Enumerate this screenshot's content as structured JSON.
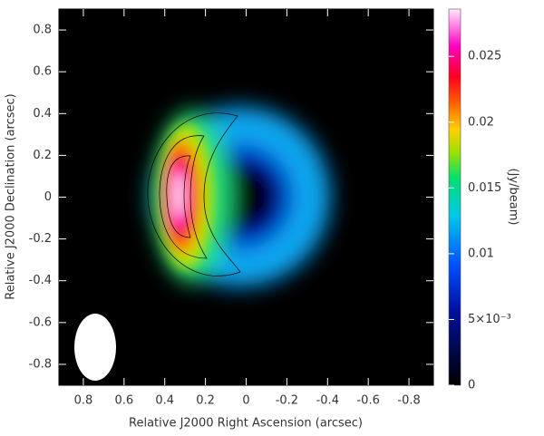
{
  "chart_data": {
    "type": "image",
    "xlabel": "Relative J2000 Right Ascension (arcsec)",
    "ylabel": "Relative J2000 Declination (arcsec)",
    "xlim": [
      0.92,
      -0.92
    ],
    "ylim": [
      -0.9,
      0.9
    ],
    "xticks": [
      0.8,
      0.6,
      0.4,
      0.2,
      0,
      -0.2,
      -0.4,
      -0.6,
      -0.8
    ],
    "yticks": [
      -0.8,
      -0.6,
      -0.4,
      -0.2,
      0,
      0.2,
      0.4,
      0.6,
      0.8
    ],
    "colorbar": {
      "label": "(Jy/beam)",
      "lim": [
        0,
        0.0286
      ],
      "ticks": [
        0,
        {
          "value": 0.005,
          "label": "5×10⁻³"
        },
        0.01,
        0.015,
        0.02,
        0.025
      ]
    }
  }
}
